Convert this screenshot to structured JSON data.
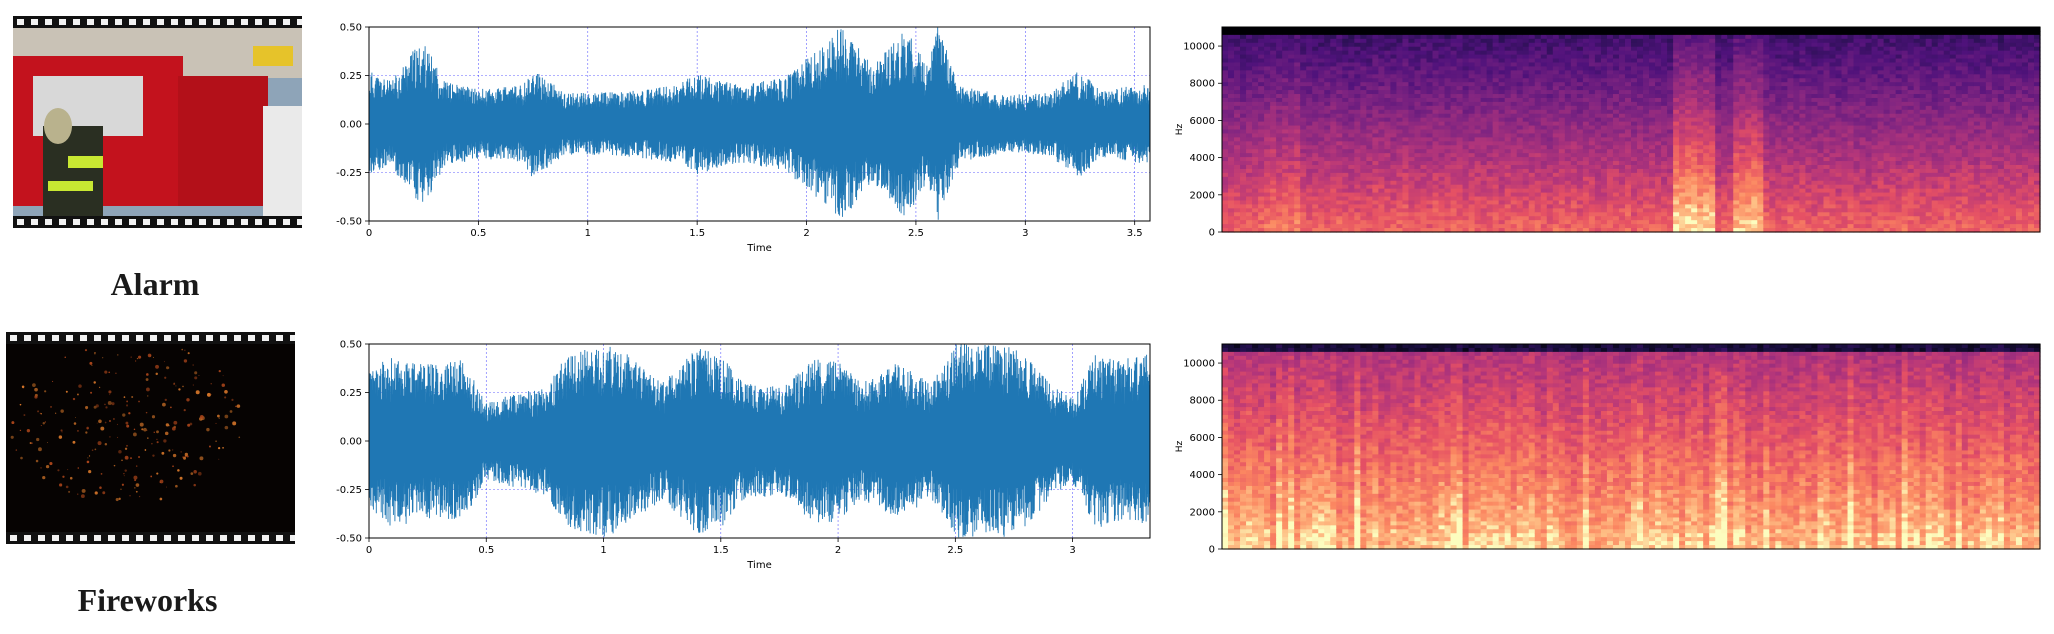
{
  "rows": [
    {
      "id": "alarm",
      "label": "Alarm",
      "thumbnail_icon": "fire-truck-video-frame",
      "waveform": {
        "xlabel": "Time",
        "xticks": [
          "0",
          "0.5",
          "1",
          "1.5",
          "2",
          "2.5",
          "3",
          "3.5"
        ],
        "yticks": [
          "0.50",
          "0.25",
          "0.00",
          "-0.25",
          "-0.50"
        ],
        "xlim": [
          0,
          3.57
        ],
        "ylim": [
          -0.5,
          0.5
        ],
        "color": "#1f77b4"
      },
      "spectrogram": {
        "ylabel": "Hz",
        "yticks": [
          "10000",
          "8000",
          "6000",
          "4000",
          "2000",
          "0"
        ],
        "ylim": [
          0,
          11025
        ],
        "colormap": "magma"
      }
    },
    {
      "id": "fireworks",
      "label": "Fireworks",
      "thumbnail_icon": "fireworks-video-frame",
      "waveform": {
        "xlabel": "Time",
        "xticks": [
          "0",
          "0.5",
          "1",
          "1.5",
          "2",
          "2.5",
          "3"
        ],
        "yticks": [
          "0.50",
          "0.25",
          "0.00",
          "-0.25",
          "-0.50"
        ],
        "xlim": [
          0,
          3.33
        ],
        "ylim": [
          -0.5,
          0.5
        ],
        "color": "#1f77b4"
      },
      "spectrogram": {
        "ylabel": "Hz",
        "yticks": [
          "10000",
          "8000",
          "6000",
          "4000",
          "2000",
          "0"
        ],
        "ylim": [
          0,
          11025
        ],
        "colormap": "magma"
      }
    }
  ],
  "chart_data": [
    {
      "type": "line",
      "xlabel": "Time",
      "ylim": [
        -0.5,
        0.5
      ],
      "xlim": [
        0,
        3.57
      ],
      "x_ticks": [
        0,
        0.5,
        1,
        1.5,
        2,
        2.5,
        3,
        3.5
      ],
      "y_ticks": [
        -0.5,
        -0.25,
        0,
        0.25,
        0.5
      ],
      "grid": true,
      "envelope": {
        "x": [
          0,
          0.1,
          0.2,
          0.25,
          0.35,
          0.5,
          0.7,
          0.75,
          0.9,
          1.0,
          1.2,
          1.4,
          1.5,
          1.7,
          1.9,
          2.0,
          2.1,
          2.15,
          2.2,
          2.3,
          2.4,
          2.45,
          2.55,
          2.6,
          2.7,
          2.9,
          3.1,
          3.25,
          3.35,
          3.5,
          3.57
        ],
        "y": [
          0.28,
          0.22,
          0.38,
          0.42,
          0.22,
          0.18,
          0.2,
          0.28,
          0.16,
          0.16,
          0.17,
          0.2,
          0.26,
          0.2,
          0.24,
          0.34,
          0.42,
          0.5,
          0.45,
          0.3,
          0.42,
          0.5,
          0.3,
          0.5,
          0.2,
          0.15,
          0.16,
          0.28,
          0.17,
          0.2,
          0.22
        ]
      }
    },
    {
      "type": "heatmap",
      "ylabel": "Hz",
      "ylim": [
        0,
        11025
      ],
      "y_ticks": [
        0,
        2000,
        4000,
        6000,
        8000,
        10000
      ],
      "colormap": "magma"
    },
    {
      "type": "line",
      "xlabel": "Time",
      "ylim": [
        -0.5,
        0.5
      ],
      "xlim": [
        0,
        3.33
      ],
      "x_ticks": [
        0,
        0.5,
        1,
        1.5,
        2,
        2.5,
        3
      ],
      "y_ticks": [
        -0.5,
        -0.25,
        0,
        0.25,
        0.5
      ],
      "grid": true,
      "envelope": {
        "x": [
          0,
          0.1,
          0.25,
          0.4,
          0.5,
          0.6,
          0.75,
          0.85,
          1.0,
          1.1,
          1.25,
          1.4,
          1.5,
          1.6,
          1.75,
          1.9,
          2.0,
          2.1,
          2.25,
          2.4,
          2.5,
          2.6,
          2.7,
          2.8,
          2.9,
          3.0,
          3.1,
          3.2,
          3.33
        ],
        "y": [
          0.35,
          0.45,
          0.4,
          0.42,
          0.2,
          0.24,
          0.28,
          0.45,
          0.5,
          0.45,
          0.3,
          0.48,
          0.45,
          0.3,
          0.28,
          0.42,
          0.42,
          0.3,
          0.4,
          0.3,
          0.5,
          0.5,
          0.5,
          0.45,
          0.3,
          0.22,
          0.45,
          0.42,
          0.45
        ]
      }
    },
    {
      "type": "heatmap",
      "ylabel": "Hz",
      "ylim": [
        0,
        11025
      ],
      "y_ticks": [
        0,
        2000,
        4000,
        6000,
        8000,
        10000
      ],
      "colormap": "magma"
    }
  ]
}
